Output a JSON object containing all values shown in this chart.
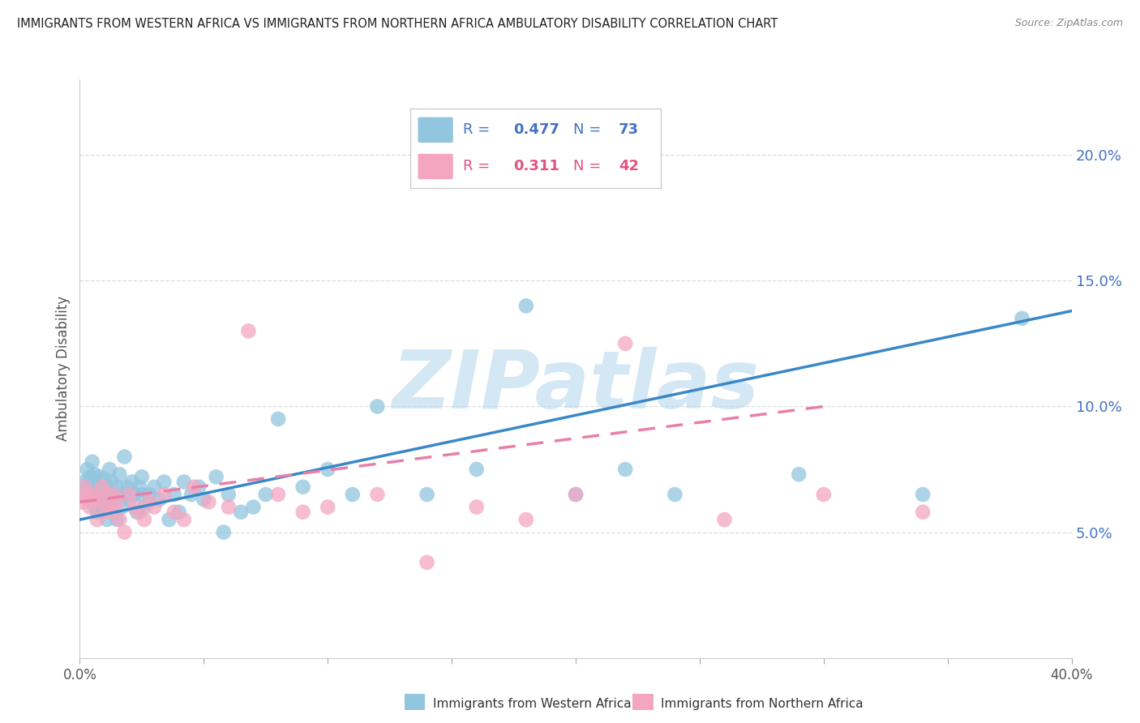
{
  "title": "IMMIGRANTS FROM WESTERN AFRICA VS IMMIGRANTS FROM NORTHERN AFRICA AMBULATORY DISABILITY CORRELATION CHART",
  "source": "Source: ZipAtlas.com",
  "ylabel": "Ambulatory Disability",
  "xlim": [
    0.0,
    0.4
  ],
  "ylim": [
    0.0,
    0.23
  ],
  "yticks": [
    0.05,
    0.1,
    0.15,
    0.2
  ],
  "blue_R": 0.477,
  "blue_N": 73,
  "pink_R": 0.311,
  "pink_N": 42,
  "blue_color": "#92C5DE",
  "pink_color": "#F4A6C0",
  "blue_line_color": "#3A87C8",
  "pink_line_color": "#E87FAA",
  "watermark": "ZIPatlas",
  "watermark_color": "#B8D8EE",
  "legend_label_blue": "Immigrants from Western Africa",
  "legend_label_pink": "Immigrants from Northern Africa",
  "blue_x": [
    0.001,
    0.002,
    0.003,
    0.003,
    0.004,
    0.004,
    0.005,
    0.005,
    0.006,
    0.006,
    0.007,
    0.007,
    0.007,
    0.008,
    0.008,
    0.009,
    0.009,
    0.01,
    0.01,
    0.011,
    0.011,
    0.012,
    0.012,
    0.013,
    0.013,
    0.014,
    0.015,
    0.015,
    0.016,
    0.016,
    0.017,
    0.018,
    0.018,
    0.019,
    0.02,
    0.021,
    0.022,
    0.023,
    0.024,
    0.025,
    0.025,
    0.026,
    0.028,
    0.03,
    0.032,
    0.034,
    0.036,
    0.038,
    0.04,
    0.042,
    0.045,
    0.048,
    0.05,
    0.055,
    0.058,
    0.06,
    0.065,
    0.07,
    0.075,
    0.08,
    0.09,
    0.1,
    0.11,
    0.12,
    0.14,
    0.16,
    0.18,
    0.2,
    0.22,
    0.24,
    0.29,
    0.34,
    0.38
  ],
  "blue_y": [
    0.065,
    0.07,
    0.068,
    0.075,
    0.063,
    0.072,
    0.07,
    0.078,
    0.06,
    0.073,
    0.065,
    0.068,
    0.058,
    0.065,
    0.072,
    0.06,
    0.066,
    0.063,
    0.071,
    0.068,
    0.055,
    0.06,
    0.075,
    0.065,
    0.07,
    0.063,
    0.068,
    0.055,
    0.065,
    0.073,
    0.06,
    0.065,
    0.08,
    0.068,
    0.063,
    0.07,
    0.065,
    0.058,
    0.068,
    0.065,
    0.072,
    0.06,
    0.065,
    0.068,
    0.063,
    0.07,
    0.055,
    0.065,
    0.058,
    0.07,
    0.065,
    0.068,
    0.063,
    0.072,
    0.05,
    0.065,
    0.058,
    0.06,
    0.065,
    0.095,
    0.068,
    0.075,
    0.065,
    0.1,
    0.065,
    0.075,
    0.14,
    0.065,
    0.075,
    0.065,
    0.073,
    0.065,
    0.135
  ],
  "pink_x": [
    0.001,
    0.002,
    0.003,
    0.004,
    0.005,
    0.006,
    0.007,
    0.008,
    0.009,
    0.01,
    0.011,
    0.012,
    0.013,
    0.014,
    0.015,
    0.016,
    0.018,
    0.02,
    0.022,
    0.024,
    0.026,
    0.028,
    0.03,
    0.034,
    0.038,
    0.042,
    0.046,
    0.052,
    0.06,
    0.068,
    0.08,
    0.09,
    0.1,
    0.12,
    0.14,
    0.16,
    0.18,
    0.2,
    0.22,
    0.26,
    0.3,
    0.34
  ],
  "pink_y": [
    0.062,
    0.068,
    0.065,
    0.06,
    0.065,
    0.062,
    0.055,
    0.063,
    0.068,
    0.058,
    0.065,
    0.06,
    0.058,
    0.065,
    0.062,
    0.055,
    0.05,
    0.065,
    0.06,
    0.058,
    0.055,
    0.062,
    0.06,
    0.065,
    0.058,
    0.055,
    0.068,
    0.062,
    0.06,
    0.13,
    0.065,
    0.058,
    0.06,
    0.065,
    0.038,
    0.06,
    0.055,
    0.065,
    0.125,
    0.055,
    0.065,
    0.058
  ],
  "blue_line_x0": 0.0,
  "blue_line_y0": 0.055,
  "blue_line_x1": 0.4,
  "blue_line_y1": 0.138,
  "pink_line_x0": 0.0,
  "pink_line_y0": 0.062,
  "pink_line_x1": 0.3,
  "pink_line_y1": 0.1
}
